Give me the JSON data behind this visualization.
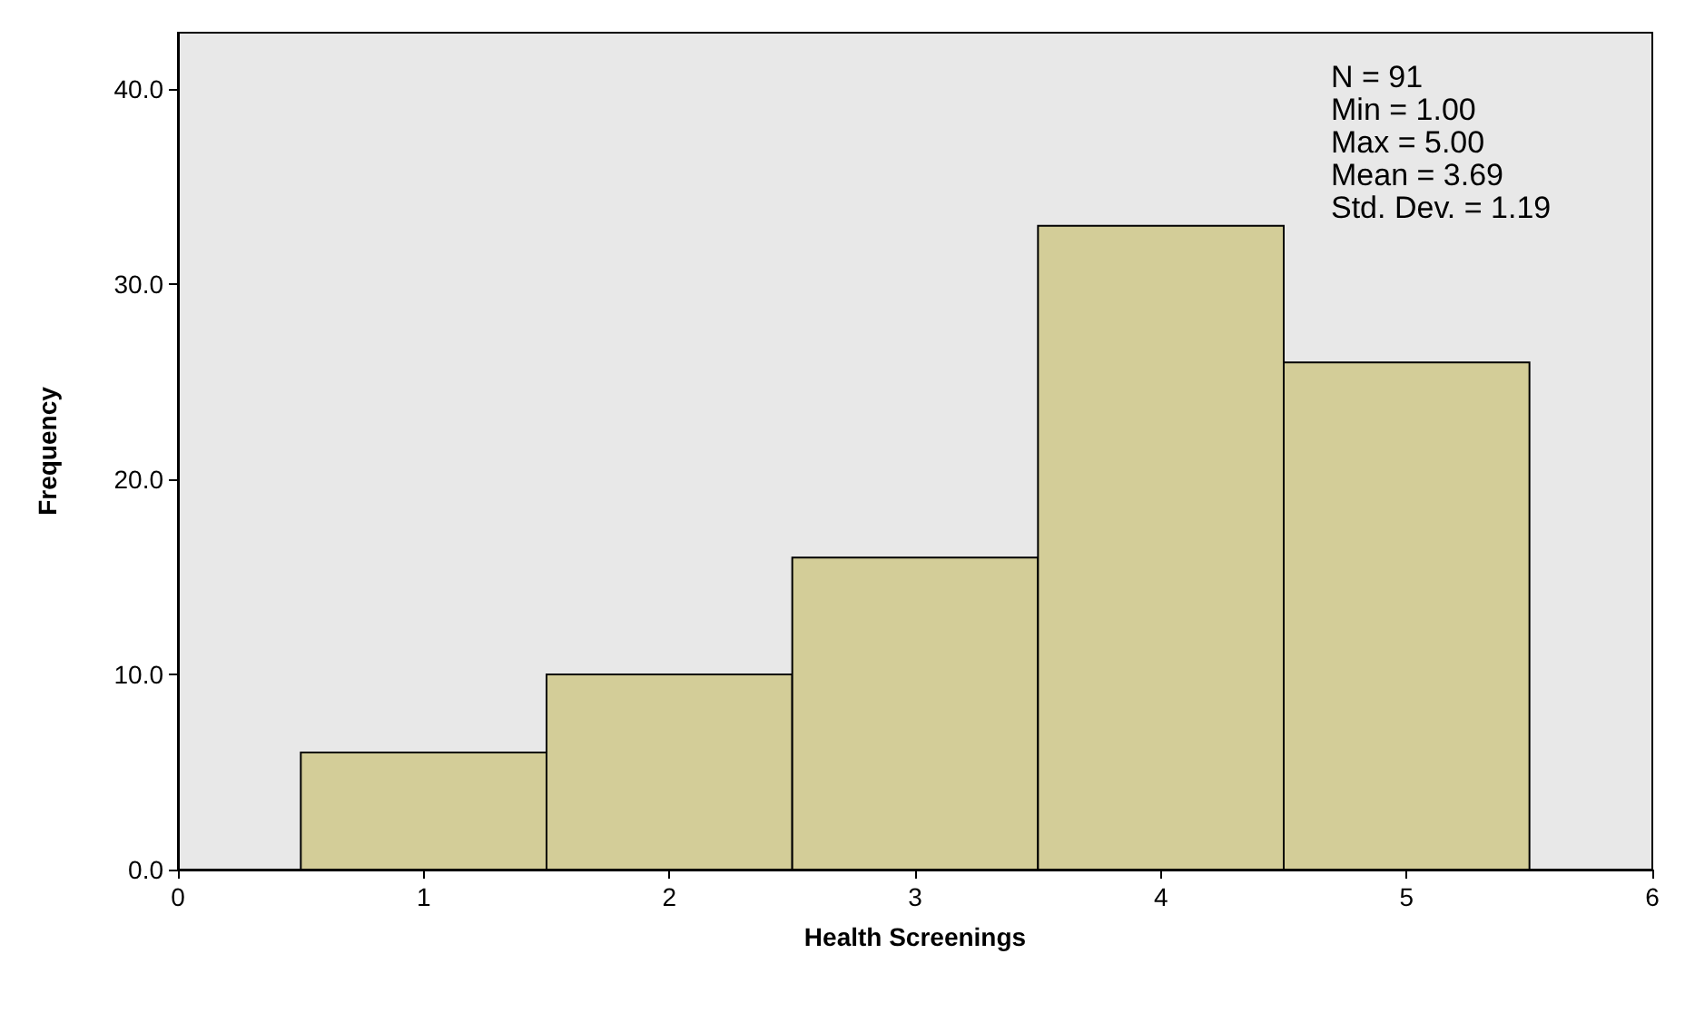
{
  "chart_data": {
    "type": "histogram",
    "xlabel": "Health Screenings",
    "ylabel": "Frequency",
    "bins": [
      0.5,
      1.5,
      2.5,
      3.5,
      4.5,
      5.5
    ],
    "values": [
      6,
      10,
      16,
      33,
      26
    ],
    "color": "#d3cd98",
    "xlim": [
      0,
      6
    ],
    "xticks": [
      0,
      1,
      2,
      3,
      4,
      5,
      6
    ],
    "ylim": [
      0,
      42.9
    ],
    "yticks": [
      {
        "value": 0,
        "label": "0.0"
      },
      {
        "value": 10,
        "label": "10.0"
      },
      {
        "value": 20,
        "label": "20.0"
      },
      {
        "value": 30,
        "label": "30.0"
      },
      {
        "value": 40,
        "label": "40.0"
      }
    ],
    "grid": false,
    "annotations": [
      "N = 91",
      "Min = 1.00",
      "Max = 5.00",
      "Mean = 3.69",
      "Std. Dev. = 1.19"
    ]
  }
}
